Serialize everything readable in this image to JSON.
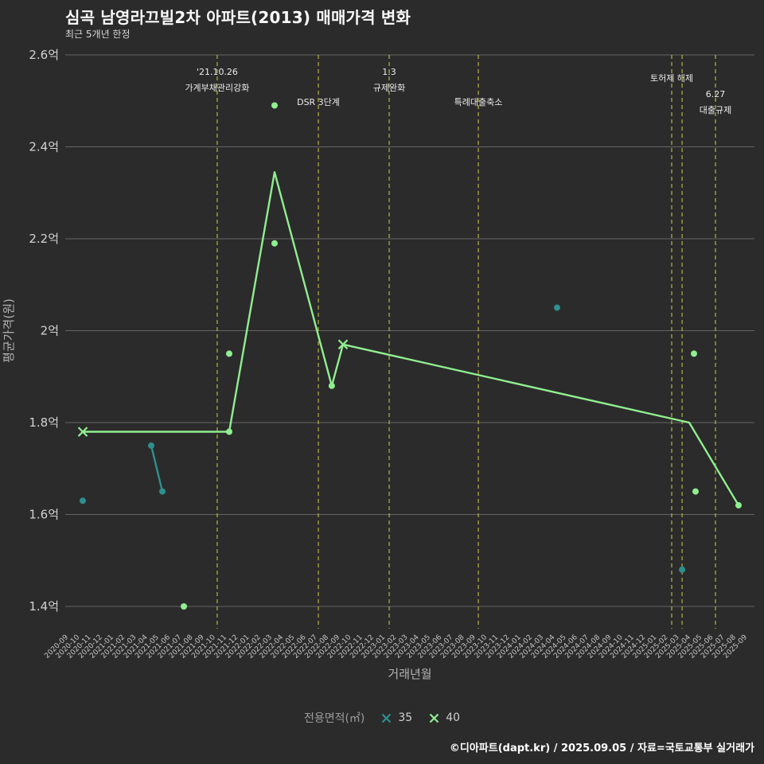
{
  "header": {
    "title": "심곡 남영라끄빌2차 아파트(2013) 매매가격 변화",
    "subtitle": "최근 5개년 한정"
  },
  "chart_data": {
    "type": "line",
    "title": "심곡 남영라끄빌2차 아파트(2013) 매매가격 변화",
    "subtitle": "최근 5개년 한정",
    "xlabel": "거래년월",
    "ylabel": "평균가격(원)",
    "unit": "억",
    "grid": "horizontal",
    "legend_position": "bottom-center",
    "ylim": [
      1.4,
      2.6
    ],
    "y_ticks": [
      {
        "value": 2.6,
        "label": "2.6억"
      },
      {
        "value": 2.4,
        "label": "2.4억"
      },
      {
        "value": 2.2,
        "label": "2.2억"
      },
      {
        "value": 2.0,
        "label": "2억"
      },
      {
        "value": 1.8,
        "label": "1.8억"
      },
      {
        "value": 1.6,
        "label": "1.6억"
      },
      {
        "value": 1.4,
        "label": "1.4억"
      }
    ],
    "x_ticks": [
      "2020-09",
      "2020-10",
      "2020-11",
      "2020-12",
      "2021-01",
      "2021-02",
      "2021-03",
      "2021-04",
      "2021-05",
      "2021-06",
      "2021-07",
      "2021-08",
      "2021-09",
      "2021-10",
      "2021-11",
      "2021-12",
      "2022-01",
      "2022-02",
      "2022-03",
      "2022-04",
      "2022-05",
      "2022-06",
      "2022-07",
      "2022-08",
      "2022-09",
      "2022-10",
      "2022-11",
      "2022-12",
      "2023-01",
      "2023-02",
      "2023-03",
      "2023-04",
      "2023-05",
      "2023-06",
      "2023-07",
      "2023-08",
      "2023-09",
      "2023-10",
      "2023-11",
      "2023-12",
      "2024-01",
      "2024-02",
      "2024-03",
      "2024-04",
      "2024-05",
      "2024-06",
      "2024-07",
      "2024-08",
      "2024-09",
      "2024-10",
      "2024-11",
      "2024-12",
      "2025-01",
      "2025-02",
      "2025-03",
      "2025-04",
      "2025-05",
      "2025-06",
      "2025-07",
      "2025-08",
      "2025-09"
    ],
    "event_line_color": "#b5b542",
    "events": [
      {
        "x_index": 13.43,
        "labels": [
          {
            "text": "'21.10.26",
            "y": 94
          },
          {
            "text": "가계부채관리강화",
            "y": 114
          }
        ]
      },
      {
        "x_index": 22.37,
        "labels": [
          {
            "text": "DSR 3단계",
            "y": 132
          }
        ]
      },
      {
        "x_index": 28.63,
        "labels": [
          {
            "text": "1.3",
            "y": 94
          },
          {
            "text": "규제완화",
            "y": 114
          }
        ]
      },
      {
        "x_index": 36.51,
        "labels": [
          {
            "text": "특례대출축소",
            "y": 132
          }
        ]
      },
      {
        "x_index": 53.6,
        "labels": [
          {
            "text": "토허제 해제",
            "y": 102
          }
        ]
      },
      {
        "x_index": 54.52,
        "labels": []
      },
      {
        "x_index": 57.47,
        "labels": [
          {
            "text": "6.27",
            "y": 122
          },
          {
            "text": "대출규제",
            "y": 142
          }
        ]
      }
    ],
    "series": [
      {
        "name": "35",
        "color": "#2e8f8f",
        "line": [
          [
            7.6,
            1.75
          ],
          [
            8.58,
            1.65
          ]
        ],
        "points": [
          [
            1.55,
            1.63
          ],
          [
            7.6,
            1.75
          ],
          [
            8.58,
            1.65
          ],
          [
            43.47,
            2.05
          ],
          [
            54.52,
            1.48
          ]
        ],
        "x_markers": []
      },
      {
        "name": "40",
        "color": "#90ee90",
        "line": [
          [
            1.55,
            1.78
          ],
          [
            14.49,
            1.78
          ],
          [
            18.5,
            2.345
          ],
          [
            23.56,
            1.88
          ],
          [
            24.55,
            1.97
          ],
          [
            55.15,
            1.8
          ],
          [
            59.51,
            1.62
          ]
        ],
        "points": [
          [
            10.48,
            1.4
          ],
          [
            14.49,
            1.95
          ],
          [
            14.49,
            1.78
          ],
          [
            18.5,
            2.49
          ],
          [
            18.5,
            2.19
          ],
          [
            23.56,
            1.88
          ],
          [
            55.57,
            1.95
          ],
          [
            55.71,
            1.65
          ],
          [
            59.51,
            1.62
          ]
        ],
        "x_markers": [
          [
            1.55,
            1.78
          ],
          [
            24.55,
            1.97
          ]
        ]
      }
    ]
  },
  "legend": {
    "label": "전용면적(㎡)",
    "items": [
      {
        "label": "35",
        "color": "#2e8f8f"
      },
      {
        "label": "40",
        "color": "#90ee90"
      }
    ]
  },
  "footer": {
    "credit": "©디아파트(dapt.kr) / 2025.09.05 / 자료=국토교통부 실거래가"
  }
}
